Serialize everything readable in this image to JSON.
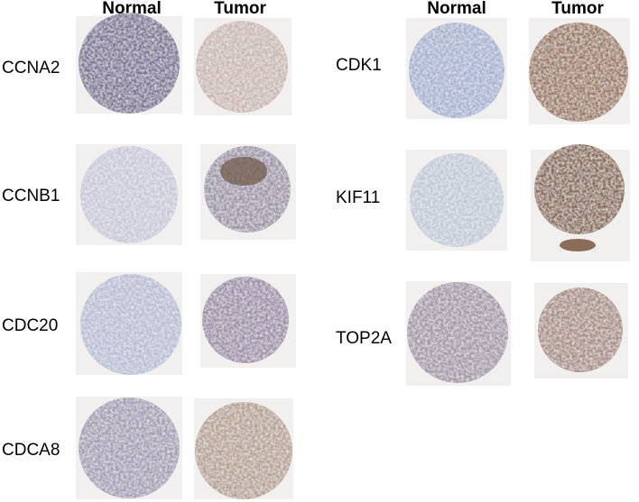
{
  "headers": [
    "Normal",
    "Tumor",
    "Normal",
    "Tumor"
  ],
  "genes": [
    "CCNA2",
    "CCNB1",
    "CDC20",
    "CDCA8",
    "CDK1",
    "KIF11",
    "TOP2A"
  ]
}
